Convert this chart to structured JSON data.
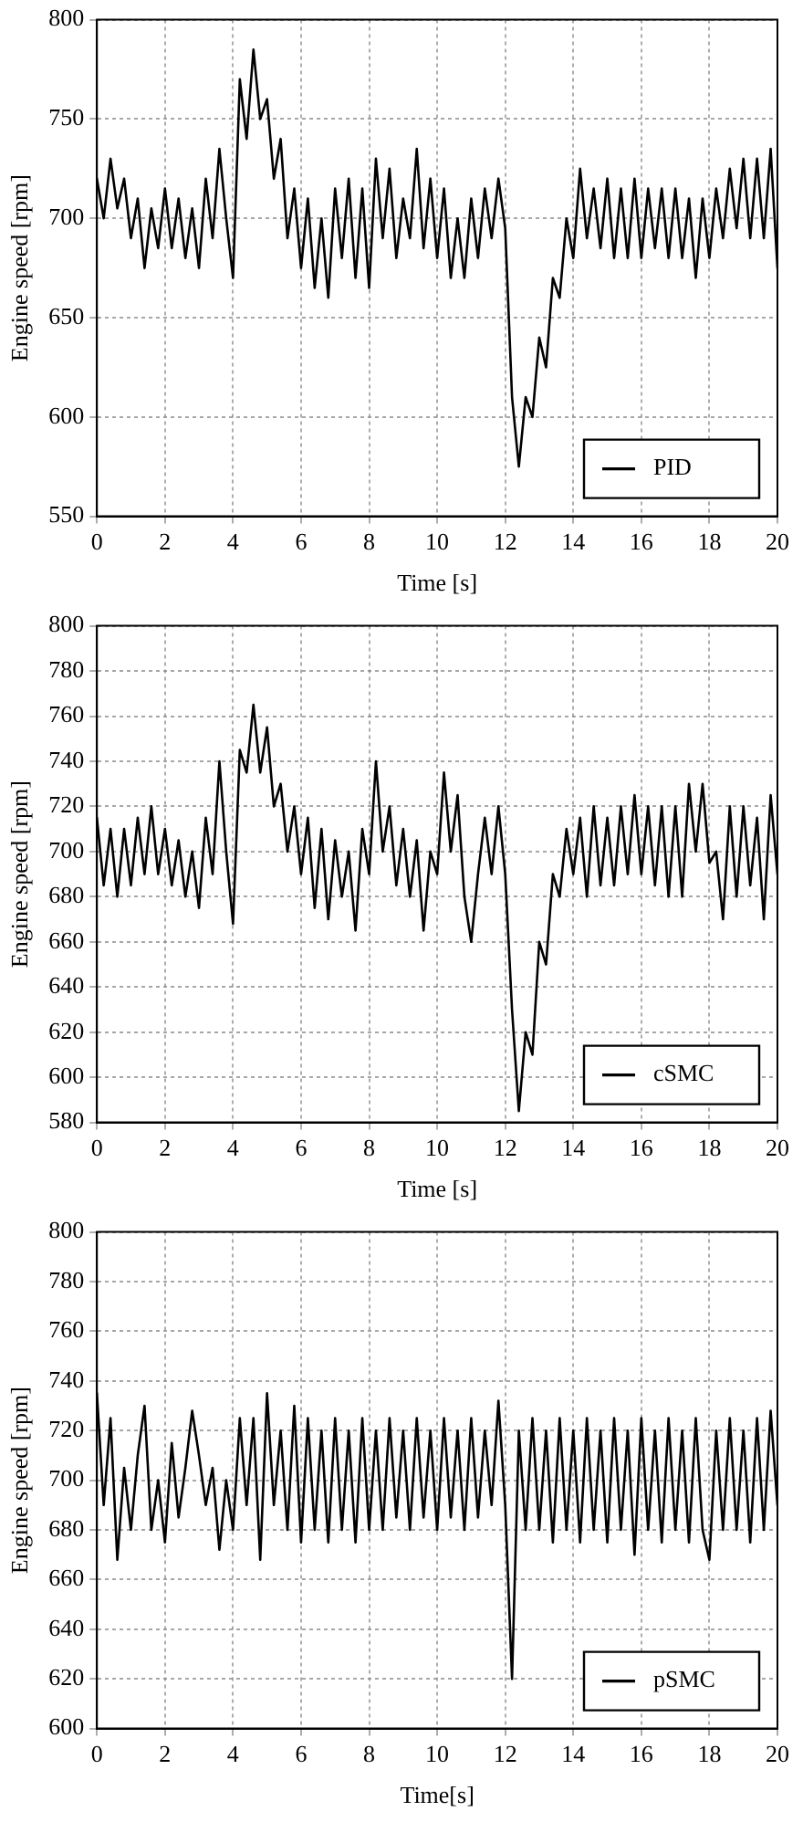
{
  "chart_data": [
    {
      "type": "line",
      "xlabel": "Time [s]",
      "ylabel": "Engine speed [rpm]",
      "xlim": [
        0,
        20
      ],
      "xticks": [
        0,
        2,
        4,
        6,
        8,
        10,
        12,
        14,
        16,
        18,
        20
      ],
      "ylim": [
        550,
        800
      ],
      "yticks": [
        550,
        600,
        650,
        700,
        750,
        800
      ],
      "grid": true,
      "legend": "bottom right",
      "line_style": "solid",
      "marker": "none",
      "x": [
        0,
        0.2,
        0.4,
        0.6,
        0.8,
        1,
        1.2,
        1.4,
        1.6,
        1.8,
        2,
        2.2,
        2.4,
        2.6,
        2.8,
        3,
        3.2,
        3.4,
        3.6,
        3.8,
        4,
        4.2,
        4.4,
        4.6,
        4.8,
        5,
        5.2,
        5.4,
        5.6,
        5.8,
        6,
        6.2,
        6.4,
        6.6,
        6.8,
        7,
        7.2,
        7.4,
        7.6,
        7.8,
        8,
        8.2,
        8.4,
        8.6,
        8.8,
        9,
        9.2,
        9.4,
        9.6,
        9.8,
        10,
        10.2,
        10.4,
        10.6,
        10.8,
        11,
        11.2,
        11.4,
        11.6,
        11.8,
        12,
        12.2,
        12.4,
        12.6,
        12.8,
        13,
        13.2,
        13.4,
        13.6,
        13.8,
        14,
        14.2,
        14.4,
        14.6,
        14.8,
        15,
        15.2,
        15.4,
        15.6,
        15.8,
        16,
        16.2,
        16.4,
        16.6,
        16.8,
        17,
        17.2,
        17.4,
        17.6,
        17.8,
        18,
        18.2,
        18.4,
        18.6,
        18.8,
        19,
        19.2,
        19.4,
        19.6,
        19.8,
        20
      ],
      "series": [
        {
          "name": "PID",
          "color": "#000000",
          "values": [
            720,
            700,
            730,
            705,
            720,
            690,
            710,
            675,
            705,
            685,
            715,
            685,
            710,
            680,
            705,
            675,
            720,
            690,
            735,
            700,
            670,
            770,
            740,
            785,
            750,
            760,
            720,
            740,
            690,
            715,
            675,
            710,
            665,
            700,
            660,
            715,
            680,
            720,
            670,
            715,
            665,
            730,
            690,
            725,
            680,
            710,
            690,
            735,
            685,
            720,
            680,
            715,
            670,
            700,
            670,
            710,
            680,
            715,
            690,
            720,
            695,
            610,
            575,
            610,
            600,
            640,
            625,
            670,
            660,
            700,
            680,
            725,
            690,
            715,
            685,
            720,
            680,
            715,
            680,
            720,
            680,
            715,
            685,
            715,
            680,
            715,
            680,
            710,
            670,
            710,
            680,
            715,
            690,
            725,
            695,
            730,
            690,
            730,
            690,
            735,
            675
          ]
        }
      ]
    },
    {
      "type": "line",
      "xlabel": "Time [s]",
      "ylabel": "Engine speed [rpm]",
      "xlim": [
        0,
        20
      ],
      "xticks": [
        0,
        2,
        4,
        6,
        8,
        10,
        12,
        14,
        16,
        18,
        20
      ],
      "ylim": [
        580,
        800
      ],
      "yticks": [
        580,
        600,
        620,
        640,
        660,
        680,
        700,
        720,
        740,
        760,
        780,
        800
      ],
      "grid": true,
      "legend": "bottom right",
      "line_style": "solid",
      "marker": "none",
      "x": [
        0,
        0.2,
        0.4,
        0.6,
        0.8,
        1,
        1.2,
        1.4,
        1.6,
        1.8,
        2,
        2.2,
        2.4,
        2.6,
        2.8,
        3,
        3.2,
        3.4,
        3.6,
        3.8,
        4,
        4.2,
        4.4,
        4.6,
        4.8,
        5,
        5.2,
        5.4,
        5.6,
        5.8,
        6,
        6.2,
        6.4,
        6.6,
        6.8,
        7,
        7.2,
        7.4,
        7.6,
        7.8,
        8,
        8.2,
        8.4,
        8.6,
        8.8,
        9,
        9.2,
        9.4,
        9.6,
        9.8,
        10,
        10.2,
        10.4,
        10.6,
        10.8,
        11,
        11.2,
        11.4,
        11.6,
        11.8,
        12,
        12.2,
        12.4,
        12.6,
        12.8,
        13,
        13.2,
        13.4,
        13.6,
        13.8,
        14,
        14.2,
        14.4,
        14.6,
        14.8,
        15,
        15.2,
        15.4,
        15.6,
        15.8,
        16,
        16.2,
        16.4,
        16.6,
        16.8,
        17,
        17.2,
        17.4,
        17.6,
        17.8,
        18,
        18.2,
        18.4,
        18.6,
        18.8,
        19,
        19.2,
        19.4,
        19.6,
        19.8,
        20
      ],
      "series": [
        {
          "name": "cSMC",
          "color": "#000000",
          "values": [
            715,
            685,
            710,
            680,
            710,
            685,
            715,
            690,
            720,
            690,
            710,
            685,
            705,
            680,
            700,
            675,
            715,
            690,
            740,
            700,
            668,
            745,
            735,
            765,
            735,
            755,
            720,
            730,
            700,
            720,
            690,
            715,
            675,
            710,
            670,
            705,
            680,
            700,
            665,
            710,
            690,
            740,
            700,
            720,
            685,
            710,
            680,
            705,
            665,
            700,
            690,
            735,
            700,
            725,
            680,
            660,
            690,
            715,
            690,
            720,
            690,
            630,
            585,
            620,
            610,
            660,
            650,
            690,
            680,
            710,
            690,
            715,
            680,
            720,
            685,
            715,
            685,
            720,
            690,
            725,
            690,
            720,
            685,
            720,
            680,
            720,
            680,
            730,
            700,
            730,
            695,
            700,
            670,
            720,
            680,
            720,
            685,
            715,
            670,
            725,
            690
          ]
        }
      ]
    },
    {
      "type": "line",
      "xlabel": "Time[s]",
      "ylabel": "Engine speed [rpm]",
      "xlim": [
        0,
        20
      ],
      "xticks": [
        0,
        2,
        4,
        6,
        8,
        10,
        12,
        14,
        16,
        18,
        20
      ],
      "ylim": [
        600,
        800
      ],
      "yticks": [
        600,
        620,
        640,
        660,
        680,
        700,
        720,
        740,
        760,
        780,
        800
      ],
      "grid": true,
      "legend": "bottom right",
      "line_style": "solid",
      "marker": "none",
      "x": [
        0,
        0.2,
        0.4,
        0.6,
        0.8,
        1,
        1.2,
        1.4,
        1.6,
        1.8,
        2,
        2.2,
        2.4,
        2.6,
        2.8,
        3,
        3.2,
        3.4,
        3.6,
        3.8,
        4,
        4.2,
        4.4,
        4.6,
        4.8,
        5,
        5.2,
        5.4,
        5.6,
        5.8,
        6,
        6.2,
        6.4,
        6.6,
        6.8,
        7,
        7.2,
        7.4,
        7.6,
        7.8,
        8,
        8.2,
        8.4,
        8.6,
        8.8,
        9,
        9.2,
        9.4,
        9.6,
        9.8,
        10,
        10.2,
        10.4,
        10.6,
        10.8,
        11,
        11.2,
        11.4,
        11.6,
        11.8,
        12,
        12.2,
        12.4,
        12.6,
        12.8,
        13,
        13.2,
        13.4,
        13.6,
        13.8,
        14,
        14.2,
        14.4,
        14.6,
        14.8,
        15,
        15.2,
        15.4,
        15.6,
        15.8,
        16,
        16.2,
        16.4,
        16.6,
        16.8,
        17,
        17.2,
        17.4,
        17.6,
        17.8,
        18,
        18.2,
        18.4,
        18.6,
        18.8,
        19,
        19.2,
        19.4,
        19.6,
        19.8,
        20
      ],
      "series": [
        {
          "name": "pSMC",
          "color": "#000000",
          "values": [
            735,
            690,
            725,
            668,
            705,
            680,
            710,
            730,
            680,
            700,
            675,
            715,
            685,
            705,
            728,
            710,
            690,
            705,
            672,
            700,
            680,
            725,
            690,
            725,
            668,
            735,
            690,
            720,
            680,
            730,
            675,
            725,
            680,
            720,
            675,
            725,
            680,
            720,
            675,
            725,
            680,
            720,
            680,
            725,
            685,
            720,
            680,
            725,
            685,
            720,
            680,
            725,
            685,
            720,
            680,
            725,
            685,
            720,
            690,
            732,
            690,
            620,
            720,
            680,
            725,
            680,
            720,
            675,
            725,
            680,
            720,
            675,
            725,
            680,
            720,
            675,
            725,
            680,
            720,
            670,
            725,
            680,
            720,
            675,
            725,
            680,
            720,
            675,
            725,
            680,
            668,
            720,
            680,
            725,
            680,
            720,
            675,
            725,
            680,
            728,
            690
          ]
        }
      ]
    }
  ]
}
